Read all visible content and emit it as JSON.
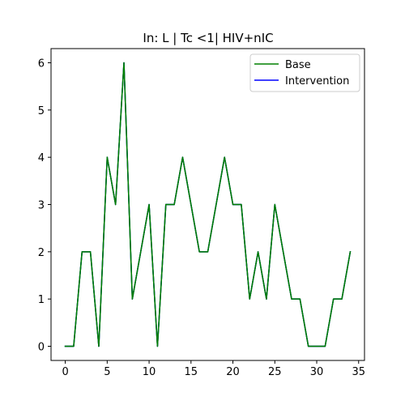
{
  "chart_data": {
    "type": "line",
    "title": "In: L | Tc <1| HIV+nIC",
    "xlabel": "",
    "ylabel": "",
    "xlim": [
      -1.7,
      35.7
    ],
    "ylim": [
      -0.3,
      6.3
    ],
    "xticks": [
      0,
      5,
      10,
      15,
      20,
      25,
      30,
      35
    ],
    "yticks": [
      0,
      1,
      2,
      3,
      4,
      5,
      6
    ],
    "grid": false,
    "legend_position": "top-right",
    "x": [
      0,
      1,
      2,
      3,
      4,
      5,
      6,
      7,
      8,
      9,
      10,
      11,
      12,
      13,
      14,
      15,
      16,
      17,
      18,
      19,
      20,
      21,
      22,
      23,
      24,
      25,
      26,
      27,
      28,
      29,
      30,
      31,
      32,
      33,
      34
    ],
    "series": [
      {
        "name": "Base",
        "color": "#008000",
        "values": [
          0,
          0,
          2,
          2,
          0,
          4,
          3,
          6,
          1,
          2,
          3,
          0,
          3,
          3,
          4,
          3,
          2,
          2,
          3,
          4,
          3,
          3,
          1,
          2,
          1,
          3,
          2,
          1,
          1,
          0,
          0,
          0,
          1,
          1,
          2
        ]
      },
      {
        "name": "Intervention",
        "color": "#0000ff",
        "values": [
          0,
          0,
          2,
          2,
          0,
          4,
          3,
          6,
          1,
          2,
          3,
          0,
          3,
          3,
          4,
          3,
          2,
          2,
          3,
          4,
          3,
          3,
          1,
          2,
          1,
          3,
          2,
          1,
          1,
          0,
          0,
          0,
          1,
          1,
          2
        ]
      }
    ]
  }
}
